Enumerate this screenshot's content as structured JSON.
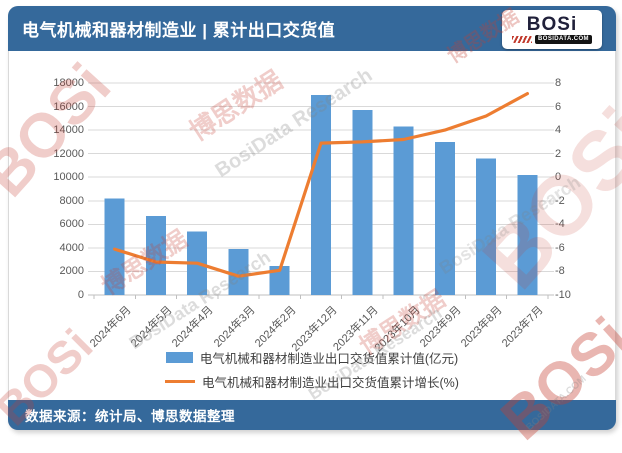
{
  "header": {
    "title": "电气机械和器材制造业 | 累计出口交货值",
    "logo": {
      "brand": "BOSi",
      "site": "BOSIDATA.COM"
    }
  },
  "footer": {
    "source": "数据来源：统计局、博思数据整理"
  },
  "watermark": {
    "brand": "BOSi",
    "cn": "博思数据",
    "en": "BosiData Research",
    "site": "BOSIDATA.COM"
  },
  "colors": {
    "theme_blue": "#35699B",
    "bar_blue": "#5B9BD5",
    "line_orange": "#ED7D31",
    "gridline": "#D9D9D9",
    "axis_line": "#BFBFBF",
    "axis_text": "#595959"
  },
  "chart_data": {
    "type": "bar",
    "subtype": "combo-bar-line-dual-axis",
    "categories": [
      "2024年6月",
      "2024年5月",
      "2024年4月",
      "2024年3月",
      "2024年2月",
      "2023年12月",
      "2023年11月",
      "2023年10月",
      "2023年9月",
      "2023年8月",
      "2023年7月"
    ],
    "series": [
      {
        "name": "电气机械和器材制造业出口交货值累计值(亿元)",
        "type": "bar",
        "axis": "left",
        "color": "#5B9BD5",
        "values": [
          8200,
          6700,
          5400,
          3900,
          2450,
          17000,
          15700,
          14300,
          13000,
          11600,
          10200
        ]
      },
      {
        "name": "电气机械和器材制造业出口交货值累计增长(%)",
        "type": "line",
        "axis": "right",
        "color": "#ED7D31",
        "values": [
          -6.1,
          -7.2,
          -7.3,
          -8.4,
          -7.9,
          2.9,
          3.0,
          3.2,
          4.0,
          5.2,
          7.1
        ]
      }
    ],
    "left_axis": {
      "min": 0,
      "max": 18000,
      "step": 2000,
      "ticks": [
        "0",
        "2000",
        "4000",
        "6000",
        "8000",
        "10000",
        "12000",
        "14000",
        "16000",
        "18000"
      ]
    },
    "right_axis": {
      "min": -10,
      "max": 8,
      "step": 2,
      "ticks": [
        "-10",
        "-8",
        "-6",
        "-4",
        "-2",
        "0",
        "2",
        "4",
        "6",
        "8"
      ]
    },
    "grid": true,
    "legend_position": "bottom"
  }
}
